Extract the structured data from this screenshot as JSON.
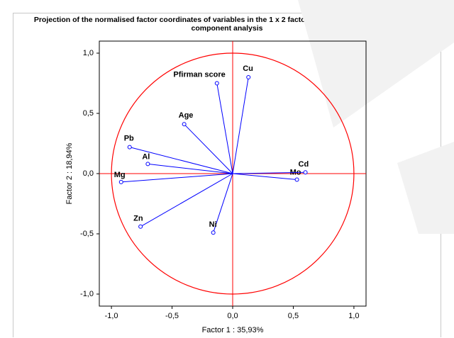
{
  "chart_data": {
    "type": "scatter",
    "title": "Projection of the normalised factor coordinates of variables  in the 1 x 2 factor plane obtained by the principal component analysis",
    "xlabel": "Factor 1 : 35,93%",
    "ylabel": "Factor 2 : 18,94%",
    "labels": [
      "Cu",
      "Pfirman score",
      "Age",
      "Pb",
      "Al",
      "Mg",
      "Zn",
      "Ni",
      "Mo",
      "Cd"
    ],
    "x": [
      0.13,
      -0.13,
      -0.4,
      -0.85,
      -0.7,
      -0.92,
      -0.76,
      -0.16,
      0.53,
      0.6
    ],
    "y": [
      0.8,
      0.75,
      0.41,
      0.22,
      0.08,
      -0.07,
      -0.44,
      -0.49,
      -0.05,
      0.01
    ],
    "color": "#0000ff",
    "circle_color": "#ff0000",
    "xlim": [
      -1.1,
      1.1
    ],
    "ylim": [
      -1.1,
      1.1
    ],
    "xticks": [
      {
        "value": -1,
        "label": "-1,0"
      },
      {
        "value": -0.5,
        "label": "-0,5"
      },
      {
        "value": 0,
        "label": "0,0"
      },
      {
        "value": 0.5,
        "label": "0,5"
      },
      {
        "value": 1,
        "label": "1,0"
      }
    ],
    "yticks": [
      {
        "value": -1,
        "label": "-1,0"
      },
      {
        "value": -0.5,
        "label": "-0,5"
      },
      {
        "value": 0,
        "label": "0,0"
      },
      {
        "value": 0.5,
        "label": "0,5"
      },
      {
        "value": 1,
        "label": "1,0"
      }
    ]
  }
}
